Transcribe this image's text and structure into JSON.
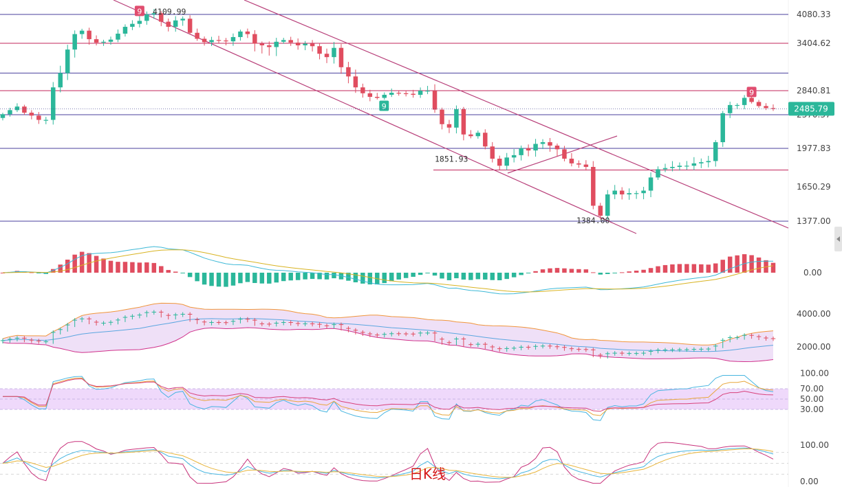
{
  "chart_data": {
    "type": "candlestick",
    "timeframe_label": "日K线",
    "colors": {
      "up": "#2bb79a",
      "down": "#e04d5f",
      "price_tag": "#2bb79a",
      "channel": "#b8407a",
      "hline_blue": "#4a3f9e",
      "hline_red": "#c2245a",
      "band_fill": "#efe0f7",
      "rsi_fill": "#efd9fb"
    },
    "main": {
      "price_axis_ticks": [
        4080.33,
        3404.62,
        2840.81,
        2370.37,
        1977.83,
        1650.29,
        1377.0
      ],
      "current_price": "2485.79",
      "horizontal_levels": [
        4080.33,
        3404.62,
        3050,
        2840.81,
        2370.37,
        1977.83,
        1377.0
      ],
      "annotations": [
        {
          "text": "4109.99",
          "price": 4109.99
        },
        {
          "text": "1851.93",
          "price": 1851.93
        },
        {
          "text": "1384.00",
          "price": 1384.0
        }
      ],
      "markers": [
        {
          "text": "9",
          "kind": "sell"
        },
        {
          "text": "9",
          "kind": "buy"
        },
        {
          "text": "9",
          "kind": "sell"
        }
      ],
      "closes": [
        2380,
        2460,
        2530,
        2410,
        2360,
        2310,
        2310,
        2880,
        3050,
        3330,
        3620,
        3700,
        3500,
        3420,
        3440,
        3490,
        3630,
        3790,
        3860,
        3930,
        4080,
        4109,
        3910,
        3790,
        3940,
        3980,
        3650,
        3510,
        3430,
        3480,
        3470,
        3450,
        3550,
        3680,
        3620,
        3400,
        3380,
        3360,
        3440,
        3480,
        3420,
        3380,
        3400,
        3370,
        3280,
        3240,
        3350,
        3120,
        3010,
        2880,
        2790,
        2720,
        2700,
        2760,
        2800,
        2790,
        2780,
        2760,
        2840,
        2840,
        2470,
        2260,
        2220,
        2480,
        2140,
        2120,
        2160,
        2000,
        1890,
        1830,
        1900,
        1920,
        1980,
        1960,
        2030,
        2050,
        2010,
        1970,
        1890,
        1850,
        1840,
        1820,
        1500,
        1420,
        1590,
        1620,
        1590,
        1600,
        1600,
        1620,
        1730,
        1800,
        1810,
        1820,
        1830,
        1830,
        1850,
        1860,
        1870,
        2050,
        2400,
        2560,
        2560,
        2700,
        2620,
        2540,
        2500,
        2486
      ]
    },
    "macd": {
      "axis_ticks": [
        0.0
      ]
    },
    "boll": {
      "axis_ticks": [
        4000.0,
        2000.0
      ]
    },
    "rsi": {
      "axis_ticks": [
        100.0,
        70.0,
        50.0,
        30.0
      ]
    },
    "kdj": {
      "axis_ticks": [
        100.0,
        0.0
      ]
    }
  }
}
